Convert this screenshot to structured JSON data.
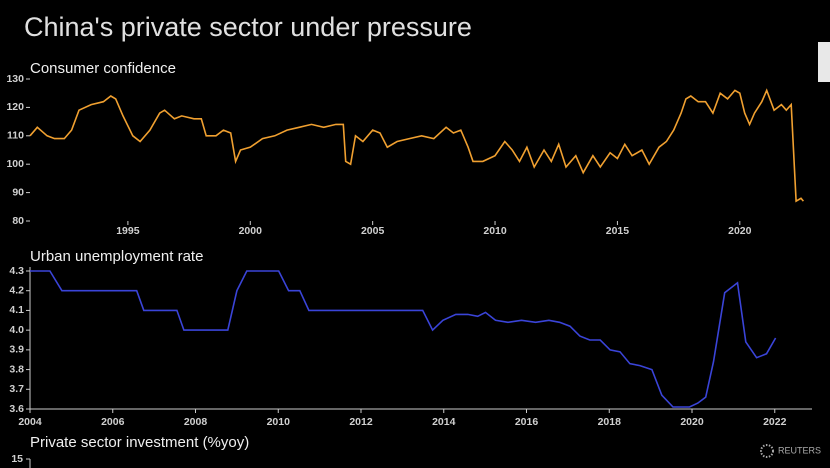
{
  "title": "China's private sector under pressure",
  "source": "REUTERS",
  "chart_data": [
    {
      "type": "line",
      "title": "Consumer confidence",
      "series": [
        {
          "name": "Consumer confidence",
          "color": "#f0a030",
          "x": [
            1991.0,
            1991.3,
            1991.7,
            1992.0,
            1992.4,
            1992.7,
            1993.0,
            1993.5,
            1994.0,
            1994.3,
            1994.5,
            1994.8,
            1995.2,
            1995.5,
            1995.9,
            1996.3,
            1996.5,
            1996.9,
            1997.2,
            1997.7,
            1998.0,
            1998.2,
            1998.6,
            1998.9,
            1999.2,
            1999.4,
            1999.6,
            2000.0,
            2000.5,
            2001.0,
            2001.5,
            2002.0,
            2002.5,
            2003.0,
            2003.5,
            2003.8,
            2003.9,
            2004.1,
            2004.3,
            2004.6,
            2005.0,
            2005.3,
            2005.6,
            2006.0,
            2006.5,
            2007.0,
            2007.5,
            2008.0,
            2008.3,
            2008.6,
            2008.9,
            2009.1,
            2009.5,
            2010.0,
            2010.4,
            2010.7,
            2011.0,
            2011.3,
            2011.6,
            2012.0,
            2012.3,
            2012.6,
            2012.9,
            2013.3,
            2013.6,
            2014.0,
            2014.3,
            2014.7,
            2015.0,
            2015.3,
            2015.6,
            2016.0,
            2016.3,
            2016.7,
            2017.0,
            2017.3,
            2017.6,
            2017.8,
            2018.0,
            2018.3,
            2018.6,
            2018.9,
            2019.2,
            2019.5,
            2019.8,
            2020.0,
            2020.2,
            2020.4,
            2020.6,
            2020.9,
            2021.1,
            2021.4,
            2021.7,
            2021.9,
            2022.1,
            2022.3,
            2022.5,
            2022.6
          ],
          "values": [
            110,
            113,
            110,
            109,
            109,
            112,
            119,
            121,
            122,
            124,
            123,
            117,
            110,
            108,
            112,
            118,
            119,
            116,
            117,
            116,
            116,
            110,
            110,
            112,
            111,
            101,
            105,
            106,
            109,
            110,
            112,
            113,
            114,
            113,
            114,
            114,
            101,
            100,
            110,
            108,
            112,
            111,
            106,
            108,
            109,
            110,
            109,
            113,
            111,
            112,
            106,
            101,
            101,
            103,
            108,
            105,
            101,
            106,
            99,
            105,
            101,
            107,
            99,
            103,
            97,
            103,
            99,
            104,
            102,
            107,
            103,
            105,
            100,
            106,
            108,
            112,
            118,
            123,
            124,
            122,
            122,
            118,
            125,
            123,
            126,
            125,
            118,
            114,
            118,
            122,
            126,
            119,
            121,
            119,
            121,
            87,
            88,
            87
          ]
        }
      ],
      "xlim": [
        1991,
        2022.95
      ],
      "xticks": [
        1995,
        2000,
        2005,
        2010,
        2015,
        2020
      ],
      "ylim": [
        80,
        130
      ],
      "yticks": [
        80,
        90,
        100,
        110,
        120,
        130
      ]
    },
    {
      "type": "line",
      "title": "Urban unemployment rate",
      "series": [
        {
          "name": "Urban unemployment rate",
          "color": "#3a44d8",
          "x": [
            2004.0,
            2004.48,
            2004.77,
            2006.58,
            2006.75,
            2007.55,
            2007.72,
            2008.78,
            2009.0,
            2009.24,
            2010.01,
            2010.25,
            2010.52,
            2010.74,
            2013.49,
            2013.73,
            2013.98,
            2014.29,
            2014.58,
            2014.82,
            2015.01,
            2015.25,
            2015.55,
            2015.88,
            2016.22,
            2016.54,
            2016.8,
            2017.05,
            2017.29,
            2017.53,
            2017.78,
            2018.02,
            2018.26,
            2018.5,
            2018.74,
            2019.03,
            2019.27,
            2019.54,
            2019.94,
            2020.14,
            2020.33,
            2020.52,
            2020.79,
            2021.1,
            2021.3,
            2021.56,
            2021.8,
            2022.02
          ],
          "values": [
            4.3,
            4.3,
            4.2,
            4.2,
            4.1,
            4.1,
            4.0,
            4.0,
            4.2,
            4.3,
            4.3,
            4.2,
            4.2,
            4.1,
            4.1,
            4.0,
            4.05,
            4.08,
            4.08,
            4.07,
            4.09,
            4.05,
            4.04,
            4.05,
            4.04,
            4.05,
            4.04,
            4.02,
            3.97,
            3.95,
            3.95,
            3.9,
            3.89,
            3.83,
            3.82,
            3.8,
            3.67,
            3.61,
            3.61,
            3.63,
            3.66,
            3.84,
            4.19,
            4.24,
            3.94,
            3.86,
            3.88,
            3.96
          ]
        }
      ],
      "xlim": [
        2004,
        2022.9
      ],
      "xticks": [
        2004,
        2006,
        2008,
        2010,
        2012,
        2014,
        2016,
        2018,
        2020,
        2022
      ],
      "ylim": [
        3.6,
        4.3
      ],
      "yticks": [
        3.6,
        3.7,
        3.8,
        3.9,
        {
          "value": 4,
          "label": "4.0"
        },
        4.1,
        4.2,
        4.3
      ]
    },
    {
      "type": "line",
      "title": "Private sector investment (%yoy)",
      "yticks": [
        15
      ]
    }
  ]
}
